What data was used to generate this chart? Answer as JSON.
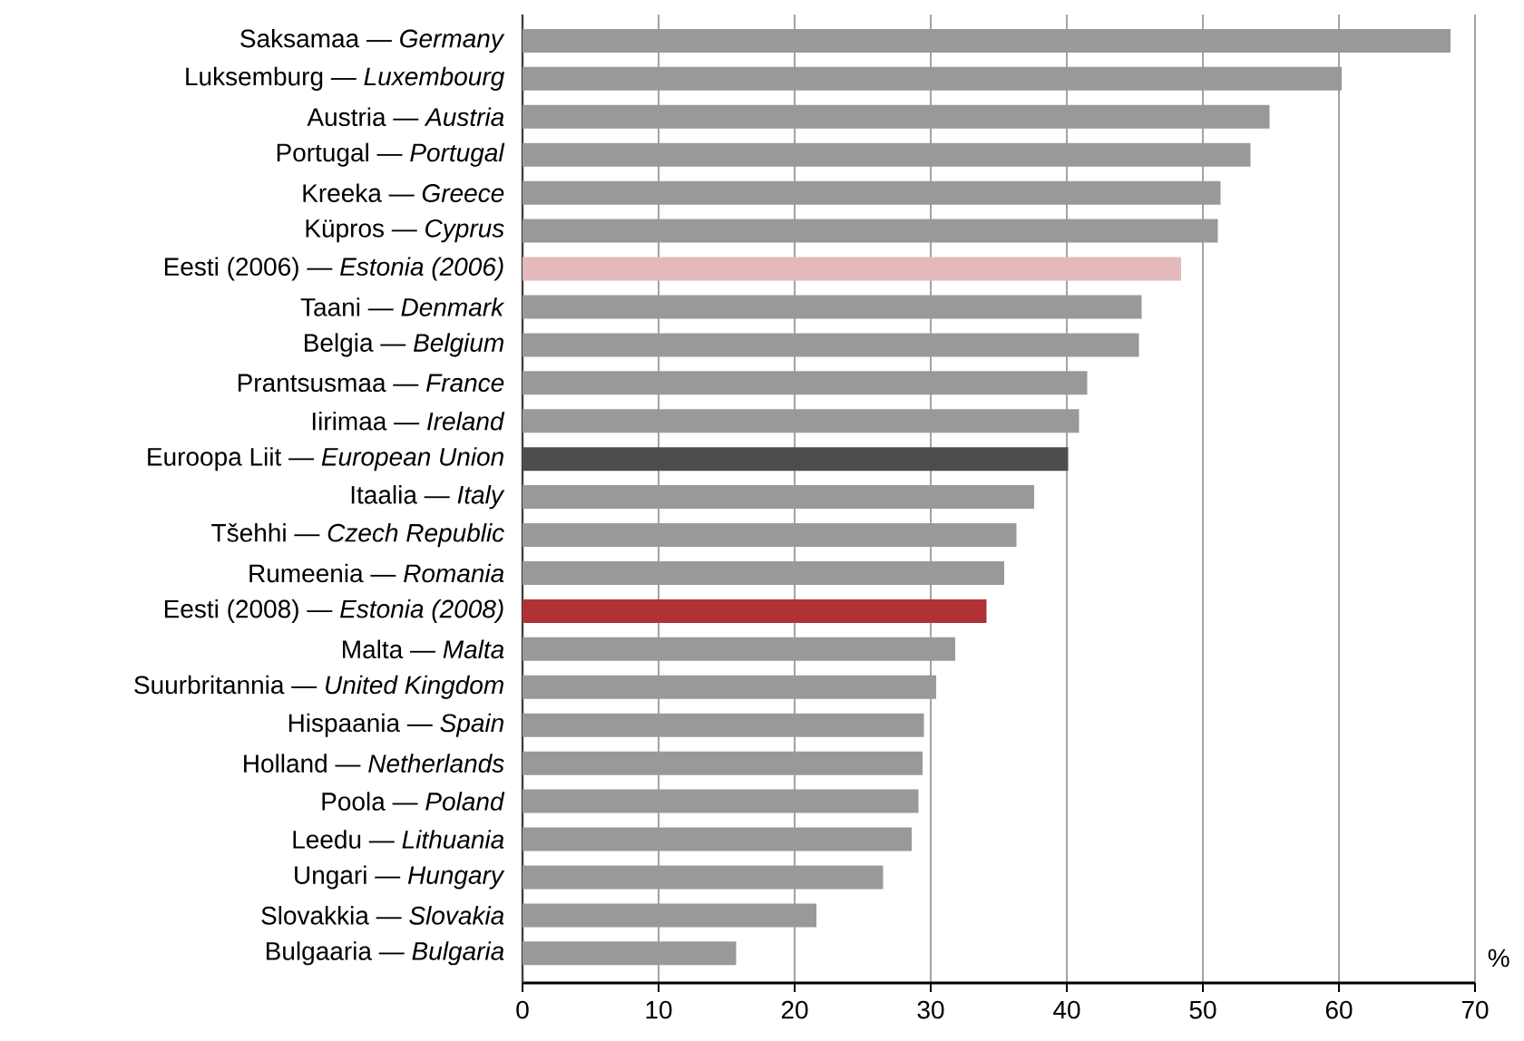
{
  "chart_data": {
    "type": "bar",
    "orientation": "horizontal",
    "xlabel": "%",
    "categories": [
      "Saksamaa — *Germany*",
      "Luksemburg — *Luxembourg*",
      "Austria — *Austria*",
      "Portugal — *Portugal*",
      "Kreeka — *Greece*",
      "Küpros — *Cyprus*",
      "Eesti (2006) — *Estonia (2006)*",
      "Taani — *Denmark*",
      "Belgia — *Belgium*",
      "Prantsusmaa — *France*",
      "Iirimaa — *Ireland*",
      "Euroopa Liit — *European Union*",
      "Itaalia — *Italy*",
      "Tšehhi — *Czech Republic*",
      "Rumeenia — *Romania*",
      "Eesti (2008) — *Estonia (2008)*",
      "Malta — *Malta*",
      "Suurbritannia — *United Kingdom*",
      "Hispaania — *Spain*",
      "Holland — *Netherlands*",
      "Poola — *Poland*",
      "Leedu — *Lithuania*",
      "Ungari — *Hungary*",
      "Slovakkia — *Slovakia*",
      "Bulgaaria — *Bulgaria*"
    ],
    "values": [
      68.2,
      60.2,
      54.9,
      53.5,
      51.3,
      51.1,
      48.4,
      45.5,
      45.3,
      41.5,
      40.9,
      40.1,
      37.6,
      36.3,
      35.4,
      34.1,
      31.8,
      30.4,
      29.5,
      29.4,
      29.1,
      28.6,
      26.5,
      21.6,
      15.7
    ],
    "colors": [
      "#999999",
      "#999999",
      "#999999",
      "#999999",
      "#999999",
      "#999999",
      "#e3b9bb",
      "#999999",
      "#999999",
      "#999999",
      "#999999",
      "#4d4d4d",
      "#999999",
      "#999999",
      "#999999",
      "#b03235",
      "#999999",
      "#999999",
      "#999999",
      "#999999",
      "#999999",
      "#999999",
      "#999999",
      "#999999",
      "#999999"
    ],
    "xlim": [
      0,
      70
    ],
    "xticks": [
      0,
      10,
      20,
      30,
      40,
      50,
      60,
      70
    ],
    "grid": "x"
  }
}
